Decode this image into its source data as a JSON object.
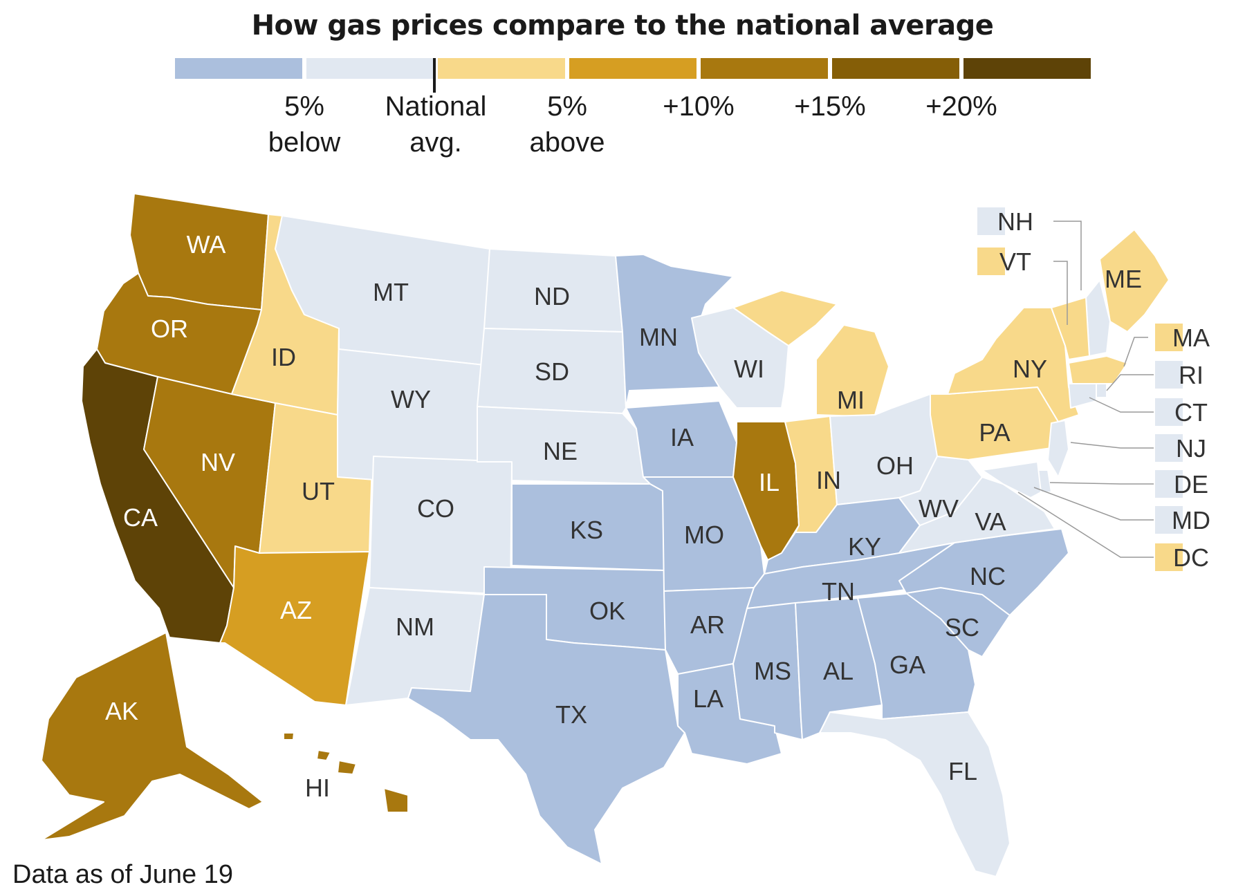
{
  "title": "How gas prices compare to the national average",
  "legend": {
    "bins": [
      {
        "color": "#abbfdd"
      },
      {
        "color": "#e1e8f1"
      },
      {
        "color": "#f8d98a"
      },
      {
        "color": "#d69e22"
      },
      {
        "color": "#a8780f"
      },
      {
        "color": "#855e07"
      },
      {
        "color": "#5e4307"
      }
    ],
    "ticks": [
      {
        "line1": "5%",
        "line2": "below"
      },
      {
        "line1": "National",
        "line2": "avg."
      },
      {
        "line1": "5%",
        "line2": "above"
      },
      {
        "line1": "+10%",
        "line2": ""
      },
      {
        "line1": "+15%",
        "line2": ""
      },
      {
        "line1": "+20%",
        "line2": ""
      }
    ]
  },
  "states": {
    "WA": 4,
    "OR": 4,
    "CA": 6,
    "NV": 4,
    "ID": 2,
    "UT": 2,
    "AZ": 3,
    "MT": 1,
    "WY": 1,
    "CO": 1,
    "NM": 1,
    "ND": 1,
    "SD": 1,
    "NE": 1,
    "KS": 0,
    "OK": 0,
    "TX": 0,
    "MN": 0,
    "IA": 0,
    "MO": 0,
    "AR": 0,
    "LA": 0,
    "WI": 1,
    "IL": 4,
    "MI": 2,
    "IN": 2,
    "OH": 1,
    "KY": 0,
    "TN": 0,
    "MS": 0,
    "AL": 0,
    "GA": 0,
    "FL": 1,
    "SC": 0,
    "NC": 0,
    "VA": 1,
    "WV": 1,
    "PA": 2,
    "NY": 2,
    "ME": 2,
    "AK": 4,
    "HI": 4,
    "NH": 1,
    "VT": 2,
    "MA": 2,
    "RI": 1,
    "CT": 1,
    "NJ": 1,
    "DE": 1,
    "MD": 1,
    "DC": 2
  },
  "state_labels": [
    "WA",
    "OR",
    "CA",
    "NV",
    "ID",
    "UT",
    "AZ",
    "MT",
    "WY",
    "CO",
    "NM",
    "ND",
    "SD",
    "NE",
    "KS",
    "OK",
    "TX",
    "MN",
    "IA",
    "MO",
    "AR",
    "LA",
    "WI",
    "IL",
    "MI",
    "IN",
    "OH",
    "KY",
    "TN",
    "MS",
    "AL",
    "GA",
    "FL",
    "SC",
    "NC",
    "VA",
    "WV",
    "PA",
    "NY",
    "ME",
    "AK",
    "HI"
  ],
  "small_states_right": [
    "MA",
    "RI",
    "CT",
    "NJ",
    "DE",
    "MD",
    "DC"
  ],
  "small_states_top": [
    "NH",
    "VT"
  ],
  "footnote": "Data as of June 19"
}
